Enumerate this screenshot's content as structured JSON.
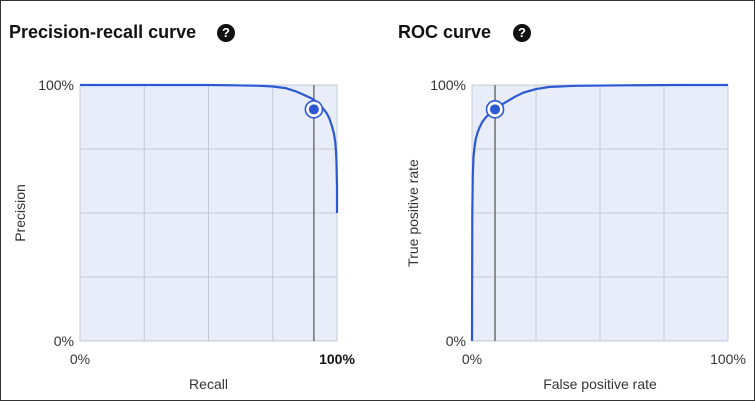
{
  "panels": {
    "pr": {
      "title": "Precision-recall curve",
      "help_icon": "question-circle-icon"
    },
    "roc": {
      "title": "ROC curve",
      "help_icon": "question-circle-icon"
    }
  },
  "colors": {
    "line": "#2b59d1",
    "plot_bg": "#e9edf9",
    "grid": "#c3c9d6",
    "marker_line": "#707070"
  },
  "chart_data": [
    {
      "type": "line",
      "title": "",
      "xlabel": "Recall",
      "ylabel": "Precision",
      "xlim": [
        0,
        100
      ],
      "ylim": [
        0,
        100
      ],
      "x_tick_labels": [
        "0%",
        "100%"
      ],
      "y_tick_labels": [
        "0%",
        "100%"
      ],
      "grid": true,
      "series": [
        {
          "x": [
            0,
            20,
            40,
            50,
            60,
            70,
            75,
            80,
            84,
            87,
            90,
            92,
            94,
            96,
            97,
            98,
            98.8,
            99.3,
            99.6,
            99.8,
            100,
            100
          ],
          "y": [
            100,
            100,
            100,
            100,
            99.9,
            99.7,
            99.4,
            98.8,
            97.5,
            96.2,
            94.8,
            93.5,
            91.5,
            89.0,
            87.0,
            84.0,
            81.0,
            78.0,
            74.0,
            70.0,
            60.0,
            50.0
          ]
        }
      ],
      "marker": {
        "x": 91,
        "y": 90.5
      }
    },
    {
      "type": "line",
      "title": "",
      "xlabel": "False positive rate",
      "ylabel": "True positive rate",
      "xlim": [
        0,
        100
      ],
      "ylim": [
        0,
        100
      ],
      "x_tick_labels": [
        "0%",
        "100%"
      ],
      "y_tick_labels": [
        "0%",
        "100%"
      ],
      "grid": true,
      "series": [
        {
          "x": [
            0,
            0.1,
            0.3,
            0.6,
            1,
            1.5,
            2.2,
            3,
            4,
            5.5,
            7,
            9,
            11,
            14,
            17,
            20,
            25,
            30,
            40,
            60,
            80,
            100
          ],
          "y": [
            0,
            50,
            65,
            72,
            76,
            79,
            81.5,
            83.5,
            85.5,
            87.5,
            89,
            90.5,
            92,
            93.8,
            95.5,
            97,
            98.4,
            99.2,
            99.7,
            99.9,
            100,
            100
          ]
        }
      ],
      "marker": {
        "x": 9,
        "y": 90.5
      }
    }
  ]
}
